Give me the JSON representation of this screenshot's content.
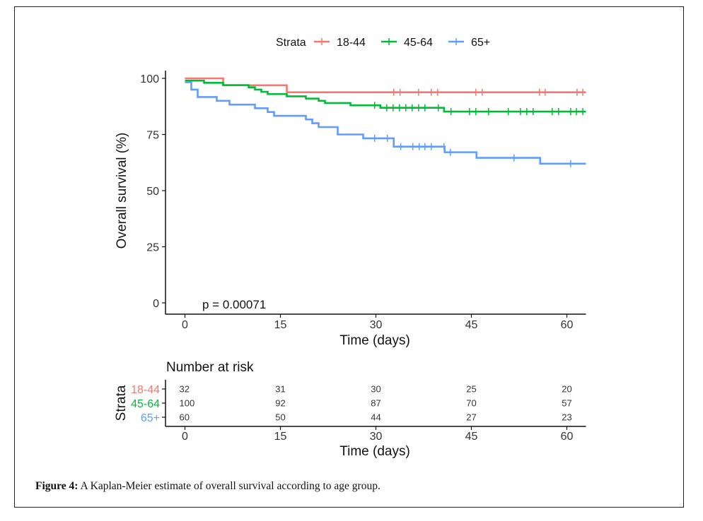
{
  "caption": {
    "label": "Figure 4:",
    "text": " A Kaplan-Meier estimate of overall survival according to age group."
  },
  "chart_data": {
    "type": "line",
    "subtype": "kaplan-meier step",
    "title": "",
    "xlabel": "Time (days)",
    "ylabel": "Overall survival (%)",
    "xlim": [
      0,
      63
    ],
    "ylim": [
      0,
      100
    ],
    "x_ticks": [
      0,
      15,
      30,
      45,
      60
    ],
    "y_ticks": [
      0,
      25,
      50,
      75,
      100
    ],
    "grid": false,
    "legend": {
      "title": "Strata",
      "placement": "top"
    },
    "annotation": "p = 0.00071",
    "series": [
      {
        "name": "18-44",
        "color": "#F8766D",
        "steps": [
          [
            0,
            100
          ],
          [
            6,
            96.9
          ],
          [
            16,
            93.8
          ],
          [
            63,
            93.8
          ]
        ],
        "censored": [
          32.8,
          33.8,
          36.7,
          38.7,
          39.7,
          45.7,
          46.7,
          55.7,
          56.6,
          61.6,
          62.5
        ]
      },
      {
        "name": "45-64",
        "color": "#00BA38",
        "steps": [
          [
            0,
            99
          ],
          [
            3,
            98
          ],
          [
            6,
            97
          ],
          [
            10,
            96
          ],
          [
            11,
            95
          ],
          [
            12,
            94
          ],
          [
            13,
            93
          ],
          [
            16,
            92
          ],
          [
            19,
            91
          ],
          [
            21,
            90
          ],
          [
            22,
            89
          ],
          [
            26,
            88
          ],
          [
            30.7,
            86.9
          ],
          [
            40.7,
            85.2
          ],
          [
            63,
            85.2
          ]
        ],
        "censored": [
          29.8,
          31.7,
          32.7,
          33.7,
          34.7,
          35.7,
          36.7,
          37.7,
          39.8,
          41.8,
          44.7,
          45.7,
          47.7,
          50.8,
          52.7,
          53.7,
          54.7,
          57.7,
          58.7,
          60.6,
          61.5,
          62.5
        ]
      },
      {
        "name": "65+",
        "color": "#619CFF",
        "steps": [
          [
            0,
            98.3
          ],
          [
            1,
            95
          ],
          [
            2,
            91.7
          ],
          [
            5,
            90
          ],
          [
            7,
            88.3
          ],
          [
            11,
            86.7
          ],
          [
            13,
            85
          ],
          [
            14,
            83.3
          ],
          [
            19,
            81.7
          ],
          [
            20,
            80
          ],
          [
            21,
            78.3
          ],
          [
            24,
            75
          ],
          [
            28,
            73.3
          ],
          [
            32.8,
            69.6
          ],
          [
            40.8,
            67.1
          ],
          [
            45.8,
            64.6
          ],
          [
            55.8,
            62
          ],
          [
            63,
            62
          ]
        ],
        "censored": [
          29.8,
          31.8,
          33.9,
          35.8,
          36.8,
          37.7,
          38.7,
          40.7,
          41.7,
          51.7,
          60.6
        ]
      }
    ],
    "risk_table": {
      "title": "Number at risk",
      "ylabel": "Strata",
      "xlabel": "Time (days)",
      "times": [
        0,
        15,
        30,
        45,
        60
      ],
      "rows": [
        {
          "name": "18-44",
          "color": "#F8766D",
          "values": [
            32,
            31,
            30,
            25,
            20
          ]
        },
        {
          "name": "45-64",
          "color": "#00BA38",
          "values": [
            100,
            92,
            87,
            70,
            57
          ]
        },
        {
          "name": "65+",
          "color": "#619CFF",
          "values": [
            60,
            50,
            44,
            27,
            23
          ]
        }
      ]
    }
  }
}
